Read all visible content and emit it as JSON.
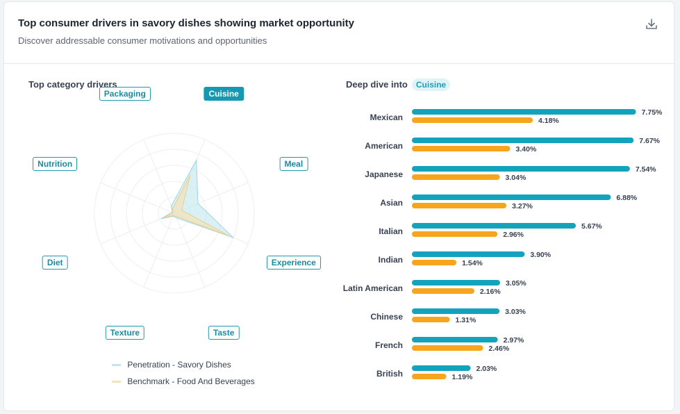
{
  "header": {
    "title": "Top consumer drivers in savory dishes showing market opportunity",
    "subtitle": "Discover addressable consumer motivations and opportunities",
    "download_icon": "download-icon"
  },
  "left_panel": {
    "title": "Top category drivers"
  },
  "right_panel": {
    "title": "Deep dive into",
    "selected": "Cuisine"
  },
  "colors": {
    "penetration": "#14a3bd",
    "benchmark": "#f7a51c",
    "radar_pen_fill": "#bfe6ee",
    "radar_bench_fill": "#f3e3b8"
  },
  "chart_data": [
    {
      "type": "radar",
      "title": "Top category drivers",
      "axes": [
        "Cuisine",
        "Meal",
        "Experience",
        "Taste",
        "Texture",
        "Diet",
        "Nutrition",
        "Packaging"
      ],
      "active_axis": "Cuisine",
      "series": [
        {
          "name": "Penetration - Savory Dishes",
          "values": [
            0.72,
            0.32,
            0.8,
            0.06,
            0.04,
            0.18,
            0.03,
            0.1
          ]
        },
        {
          "name": "Benchmark - Food And Beverages",
          "values": [
            0.52,
            0.1,
            0.74,
            0.04,
            0.03,
            0.14,
            0.02,
            0.06
          ]
        }
      ],
      "grid": true,
      "legend_position": "bottom"
    },
    {
      "type": "bar",
      "orientation": "horizontal",
      "title": "Deep dive into Cuisine",
      "categories": [
        "Mexican",
        "American",
        "Japanese",
        "Asian",
        "Italian",
        "Indian",
        "Latin American",
        "Chinese",
        "French",
        "British"
      ],
      "series": [
        {
          "name": "Penetration - Savory Dishes",
          "values": [
            7.75,
            7.67,
            7.54,
            6.88,
            5.67,
            3.9,
            3.05,
            3.03,
            2.97,
            2.03
          ],
          "labels": [
            "7.75%",
            "7.67%",
            "7.54%",
            "6.88%",
            "5.67%",
            "3.90%",
            "3.05%",
            "3.03%",
            "2.97%",
            "2.03%"
          ]
        },
        {
          "name": "Benchmark - Food And Beverages",
          "values": [
            4.18,
            3.4,
            3.04,
            3.27,
            2.96,
            1.54,
            2.16,
            1.31,
            2.46,
            1.19
          ],
          "labels": [
            "4.18%",
            "3.40%",
            "3.04%",
            "3.27%",
            "2.96%",
            "1.54%",
            "2.16%",
            "1.31%",
            "2.46%",
            "1.19%"
          ]
        }
      ],
      "xlim": [
        0,
        8
      ],
      "grid": false
    }
  ]
}
